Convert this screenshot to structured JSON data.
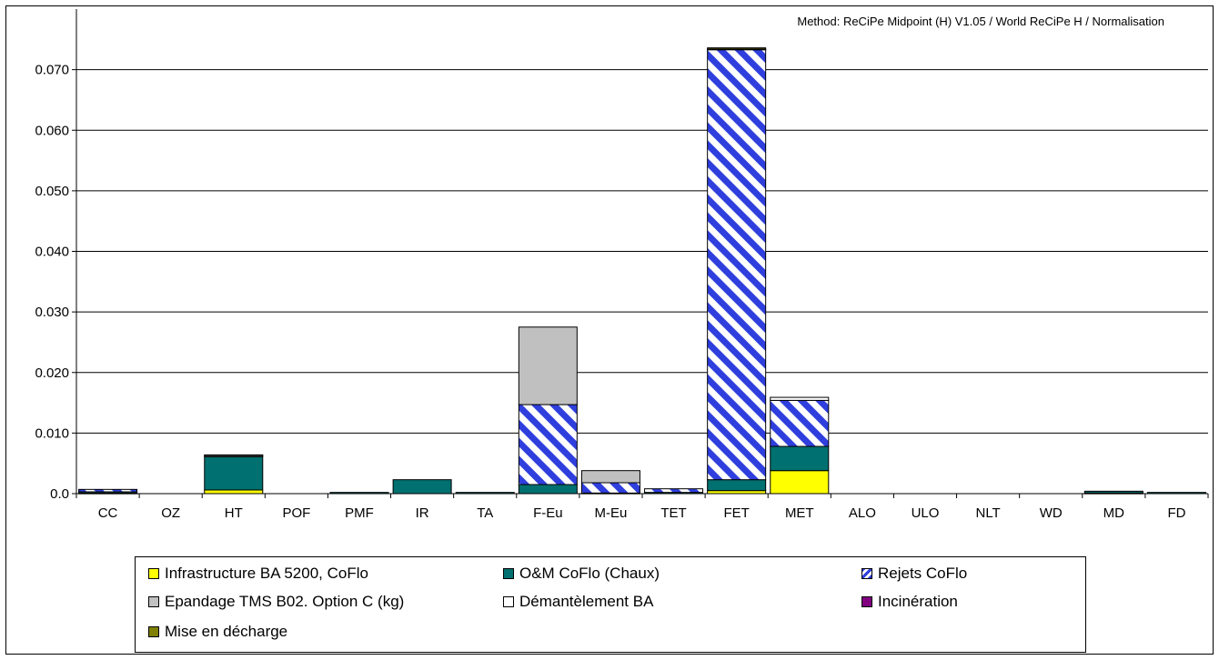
{
  "method_label": "Method: ReCiPe Midpoint (H) V1.05 /  World ReCiPe H / Normalisation",
  "chart_data": {
    "type": "bar",
    "stacked": true,
    "title": "",
    "xlabel": "",
    "ylabel": "",
    "ylim": [
      0,
      0.08
    ],
    "yticks": [
      0.0,
      0.01,
      0.02,
      0.03,
      0.04,
      0.05,
      0.06,
      0.07
    ],
    "ytick_labels": [
      "0.0",
      "0.010",
      "0.020",
      "0.030",
      "0.040",
      "0.050",
      "0.060",
      "0.070"
    ],
    "grid": true,
    "legend_position": "bottom",
    "categories": [
      "CC",
      "OZ",
      "HT",
      "POF",
      "PMF",
      "IR",
      "TA",
      "F-Eu",
      "M-Eu",
      "TET",
      "FET",
      "MET",
      "ALO",
      "ULO",
      "NLT",
      "WD",
      "MD",
      "FD"
    ],
    "series": [
      {
        "name": "Infrastructure BA 5200, CoFlo",
        "color": "#ffff00",
        "pattern": "solid",
        "values": [
          0.0001,
          0,
          0.0006,
          0,
          0,
          0,
          0,
          0,
          0,
          0,
          0.0005,
          0.0038,
          0,
          0,
          0,
          0,
          0.0001,
          0
        ]
      },
      {
        "name": "O&M CoFlo (Chaux)",
        "color": "#007070",
        "pattern": "solid",
        "values": [
          0.0002,
          0,
          0.0055,
          0,
          0.0002,
          0.0023,
          0.0002,
          0.0015,
          0.0001,
          0.0002,
          0.0018,
          0.004,
          0,
          0,
          0,
          0,
          0.0003,
          0.0002
        ]
      },
      {
        "name": "Rejets CoFlo",
        "color": "#2f3fdd",
        "pattern": "diagonal-stripes",
        "values": [
          0.0004,
          0,
          0,
          0,
          0,
          0,
          0,
          0.0132,
          0.0017,
          0.0006,
          0.071,
          0.0076,
          0,
          0,
          0,
          0,
          0,
          0
        ]
      },
      {
        "name": "Epandage TMS B02. Option C (kg)",
        "color": "#c0c0c0",
        "pattern": "solid",
        "values": [
          0,
          0,
          0,
          0,
          0,
          0,
          0,
          0.0128,
          0.002,
          0,
          0,
          0,
          0,
          0,
          0,
          0,
          0,
          0
        ]
      },
      {
        "name": "Démantèlement BA",
        "color": "#ffffff",
        "pattern": "solid",
        "values": [
          0,
          0,
          0.0002,
          0,
          0,
          0,
          0,
          0,
          0,
          0,
          0.0001,
          0.0005,
          0,
          0,
          0,
          0,
          0,
          0
        ]
      },
      {
        "name": "Incinération",
        "color": "#800080",
        "pattern": "solid",
        "values": [
          0,
          0,
          0,
          0,
          0,
          0,
          0,
          0,
          0,
          0,
          0,
          0,
          0,
          0,
          0,
          0,
          0,
          0
        ]
      },
      {
        "name": "Mise en décharge",
        "color": "#808000",
        "pattern": "solid",
        "values": [
          0,
          0,
          0.0001,
          0,
          0,
          0,
          0,
          0,
          0,
          0,
          0.0002,
          0,
          0,
          0,
          0,
          0,
          0,
          0
        ]
      }
    ]
  }
}
